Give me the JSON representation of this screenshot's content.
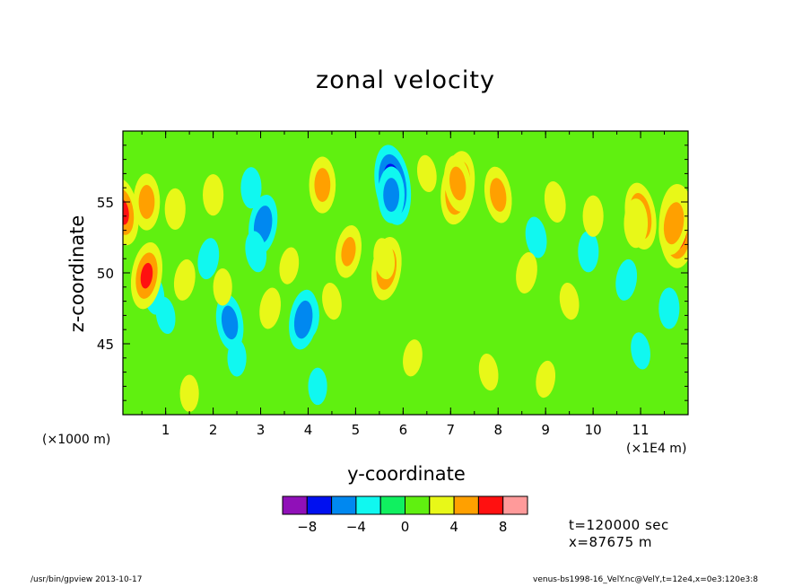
{
  "chart_data": {
    "type": "heatmap",
    "title": "zonal velocity",
    "xlabel": "y-coordinate",
    "ylabel": "z-coordinate",
    "x_multiplier_left": "(×1000 m)",
    "x_multiplier_right": "(×1E4 m)",
    "xlim": [
      0.1,
      12.0
    ],
    "ylim": [
      40,
      60
    ],
    "x_ticks": [
      1,
      2,
      3,
      4,
      5,
      6,
      7,
      8,
      9,
      10,
      11
    ],
    "x_tick_labels": [
      "1",
      "2",
      "3",
      "4",
      "5",
      "6",
      "7",
      "8",
      "9",
      "10",
      "11"
    ],
    "y_ticks": [
      45,
      50,
      55
    ],
    "y_tick_labels": [
      "45",
      "50",
      "55"
    ],
    "colorbar": {
      "levels": [
        -10,
        -8,
        -6,
        -4,
        -2,
        0,
        2,
        4,
        6,
        8,
        10
      ],
      "colors": [
        "#9010b8",
        "#0010f0",
        "#0088f0",
        "#10f8f0",
        "#10f060",
        "#60f010",
        "#e8f818",
        "#ffa000",
        "#ff1010",
        "#ff9a9a"
      ],
      "tick_values": [
        -8,
        -4,
        0,
        4,
        8
      ],
      "tick_labels": [
        "−8",
        "−4",
        "0",
        "4",
        "8"
      ]
    },
    "features": [
      {
        "y": 5.78,
        "z": 56.2,
        "value": -8.5
      },
      {
        "y": 5.75,
        "z": 55.5,
        "value": -5
      },
      {
        "y": 3.05,
        "z": 53.4,
        "value": -5.5
      },
      {
        "y": 2.9,
        "z": 51.5,
        "value": -3
      },
      {
        "y": 2.8,
        "z": 56.0,
        "value": -3
      },
      {
        "y": 1.9,
        "z": 51.0,
        "value": -3
      },
      {
        "y": 2.35,
        "z": 46.5,
        "value": -5
      },
      {
        "y": 4.0,
        "z": 47.0,
        "value": -3.5
      },
      {
        "y": 3.9,
        "z": 46.7,
        "value": -5.5
      },
      {
        "y": 8.8,
        "z": 52.5,
        "value": -3
      },
      {
        "y": 9.9,
        "z": 51.5,
        "value": -3
      },
      {
        "y": 10.7,
        "z": 49.5,
        "value": -3
      },
      {
        "y": 0.75,
        "z": 48.5,
        "value": -3
      },
      {
        "y": 11.6,
        "z": 47.5,
        "value": -3
      },
      {
        "y": 7.15,
        "z": 56.0,
        "value": 7.5
      },
      {
        "y": 7.15,
        "z": 56.3,
        "value": 5
      },
      {
        "y": 11.77,
        "z": 53.3,
        "value": 9
      },
      {
        "y": 11.7,
        "z": 53.5,
        "value": 6
      },
      {
        "y": 11.0,
        "z": 54.0,
        "value": 6.5
      },
      {
        "y": 10.9,
        "z": 53.5,
        "value": 4
      },
      {
        "y": 0.6,
        "z": 49.8,
        "value": 6.5
      },
      {
        "y": 0.1,
        "z": 54.3,
        "value": 6.5
      },
      {
        "y": 0.6,
        "z": 55.0,
        "value": 5
      },
      {
        "y": 5.65,
        "z": 50.3,
        "value": 6
      },
      {
        "y": 5.6,
        "z": 51.0,
        "value": 3
      },
      {
        "y": 4.3,
        "z": 56.2,
        "value": 5
      },
      {
        "y": 4.85,
        "z": 51.5,
        "value": 4.5
      },
      {
        "y": 8.0,
        "z": 55.5,
        "value": 5
      },
      {
        "y": 1.2,
        "z": 54.5,
        "value": 3
      },
      {
        "y": 3.2,
        "z": 47.5,
        "value": 3
      },
      {
        "y": 9.2,
        "z": 55.0,
        "value": 3
      },
      {
        "y": 10.0,
        "z": 54.0,
        "value": 3
      },
      {
        "y": 8.6,
        "z": 50.0,
        "value": 3
      },
      {
        "y": 6.5,
        "z": 57.0,
        "value": 2.5
      },
      {
        "y": 2.0,
        "z": 55.5,
        "value": 3
      },
      {
        "y": 1.4,
        "z": 49.5,
        "value": 3
      },
      {
        "y": 4.5,
        "z": 48.0,
        "value": 2.5
      },
      {
        "y": 2.2,
        "z": 49.0,
        "value": 2.5
      },
      {
        "y": 3.6,
        "z": 50.5,
        "value": 2.5
      },
      {
        "y": 1.0,
        "z": 47.0,
        "value": -2.5
      },
      {
        "y": 6.0,
        "z": 48.5,
        "value": -2
      },
      {
        "y": 7.4,
        "z": 49.0,
        "value": -2
      },
      {
        "y": 9.5,
        "z": 48.0,
        "value": 2.5
      },
      {
        "y": 2.5,
        "z": 44.0,
        "value": -2.5
      },
      {
        "y": 6.2,
        "z": 44.0,
        "value": 2.5
      },
      {
        "y": 7.8,
        "z": 43.0,
        "value": 2.5
      },
      {
        "y": 4.2,
        "z": 42.0,
        "value": -2.5
      },
      {
        "y": 9.0,
        "z": 42.5,
        "value": 2.5
      },
      {
        "y": 11.0,
        "z": 44.5,
        "value": -2.5
      },
      {
        "y": 1.5,
        "z": 41.5,
        "value": 2.5
      }
    ]
  },
  "labels": {
    "title": "zonal velocity",
    "xlabel": "y-coordinate",
    "ylabel": "z-coordinate",
    "x_multiplier_left": "(×1000 m)",
    "x_multiplier_right": "(×1E4 m)",
    "time_info": "t=120000 sec",
    "x_info": "x=87675 m",
    "footer_left": "/usr/bin/gpview  2013-10-17",
    "footer_right": "venus-bs1998-16_VelY.nc@VelY,t=12e4,x=0e3:120e3:8"
  }
}
